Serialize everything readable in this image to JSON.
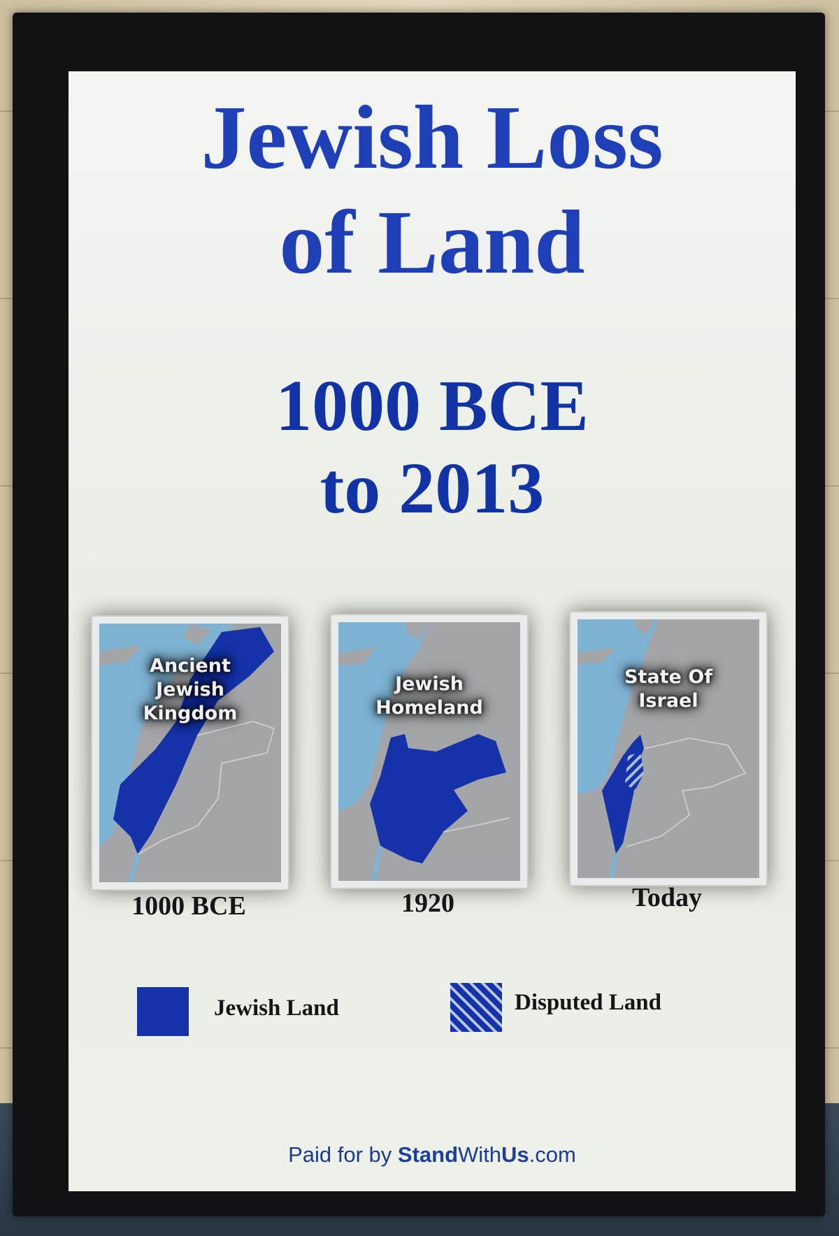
{
  "poster": {
    "title_line1": "Jewish Loss",
    "title_line2": "of Land",
    "subtitle_line1": "1000 BCE",
    "subtitle_line2": "to 2013"
  },
  "maps": [
    {
      "label_lines": [
        "Ancient",
        "Jewish",
        "Kingdom"
      ],
      "caption": "1000 BCE"
    },
    {
      "label_lines": [
        "Jewish",
        "Homeland"
      ],
      "caption": "1920"
    },
    {
      "label_lines": [
        "State Of",
        "Israel"
      ],
      "caption": "Today"
    }
  ],
  "legend": {
    "jewish_land": "Jewish Land",
    "disputed_land": "Disputed Land"
  },
  "footer": {
    "prefix": "Paid for by ",
    "brand_bold_1": "Stand",
    "brand_regular": "With",
    "brand_bold_2": "Us",
    "suffix": ".com"
  },
  "colors": {
    "title_blue": "#1f3fb7",
    "jewish_land": "#1532a8",
    "sea": "#7fb3d3",
    "land_gray": "#a3a5a8",
    "frame": "#121214"
  }
}
